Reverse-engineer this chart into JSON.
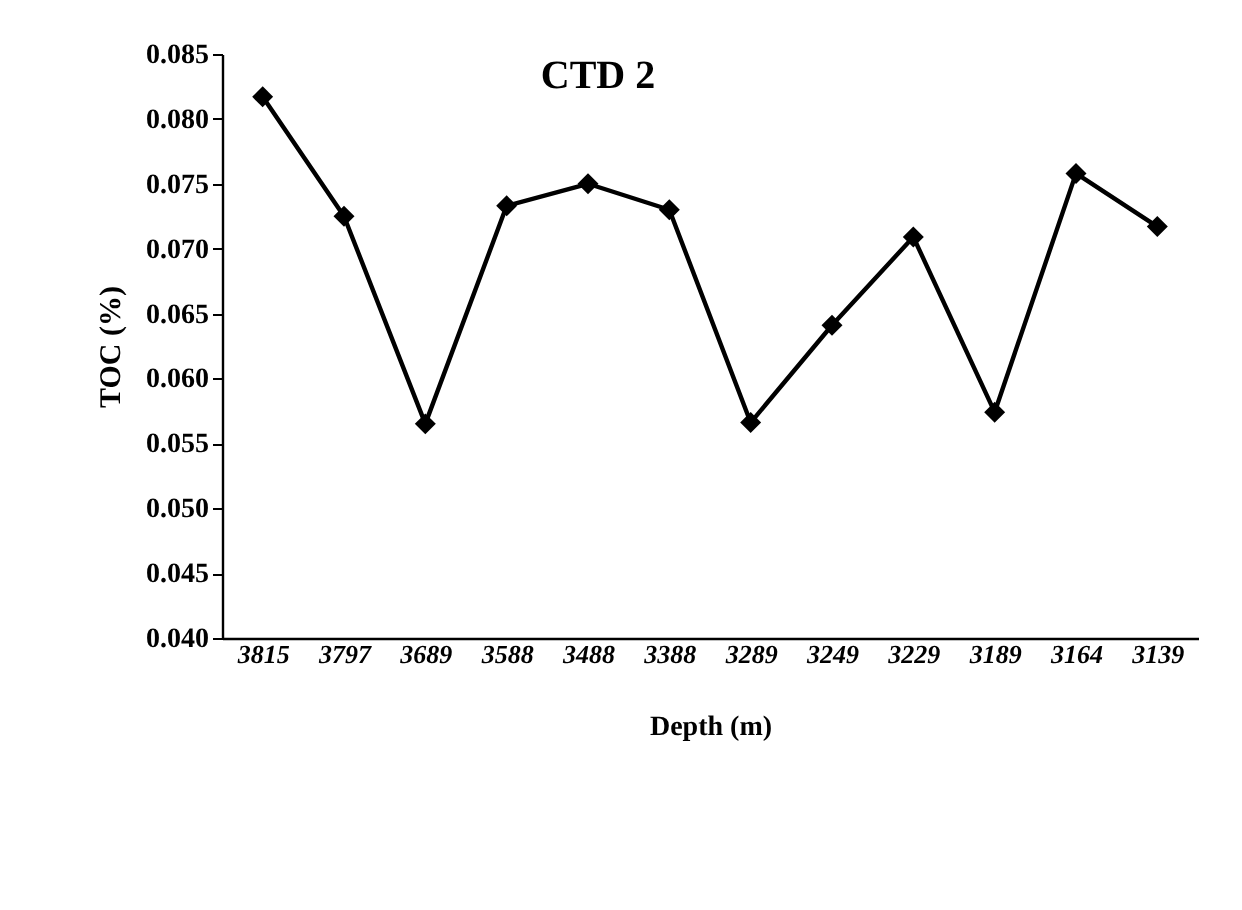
{
  "chart_data": {
    "type": "line",
    "title": "CTD 2",
    "xlabel": "Depth (m)",
    "ylabel": "TOC (%)",
    "categories": [
      "3815",
      "3797",
      "3689",
      "3588",
      "3488",
      "3388",
      "3289",
      "3249",
      "3229",
      "3189",
      "3164",
      "3139"
    ],
    "values": [
      0.0817,
      0.0725,
      0.0565,
      0.0733,
      0.075,
      0.073,
      0.0566,
      0.0641,
      0.0709,
      0.0574,
      0.0758,
      0.0717
    ],
    "color": "#000000",
    "marker": "diamond",
    "line_style": "solid",
    "ylim": [
      0.04,
      0.085
    ],
    "yticks": [
      {
        "value": 0.04,
        "label": "0.040"
      },
      {
        "value": 0.045,
        "label": "0.045"
      },
      {
        "value": 0.05,
        "label": "0.050"
      },
      {
        "value": 0.055,
        "label": "0.055"
      },
      {
        "value": 0.06,
        "label": "0.060"
      },
      {
        "value": 0.065,
        "label": "0.065"
      },
      {
        "value": 0.07,
        "label": "0.070"
      },
      {
        "value": 0.075,
        "label": "0.075"
      },
      {
        "value": 0.08,
        "label": "0.080"
      },
      {
        "value": 0.085,
        "label": "0.085"
      }
    ],
    "grid": false
  }
}
